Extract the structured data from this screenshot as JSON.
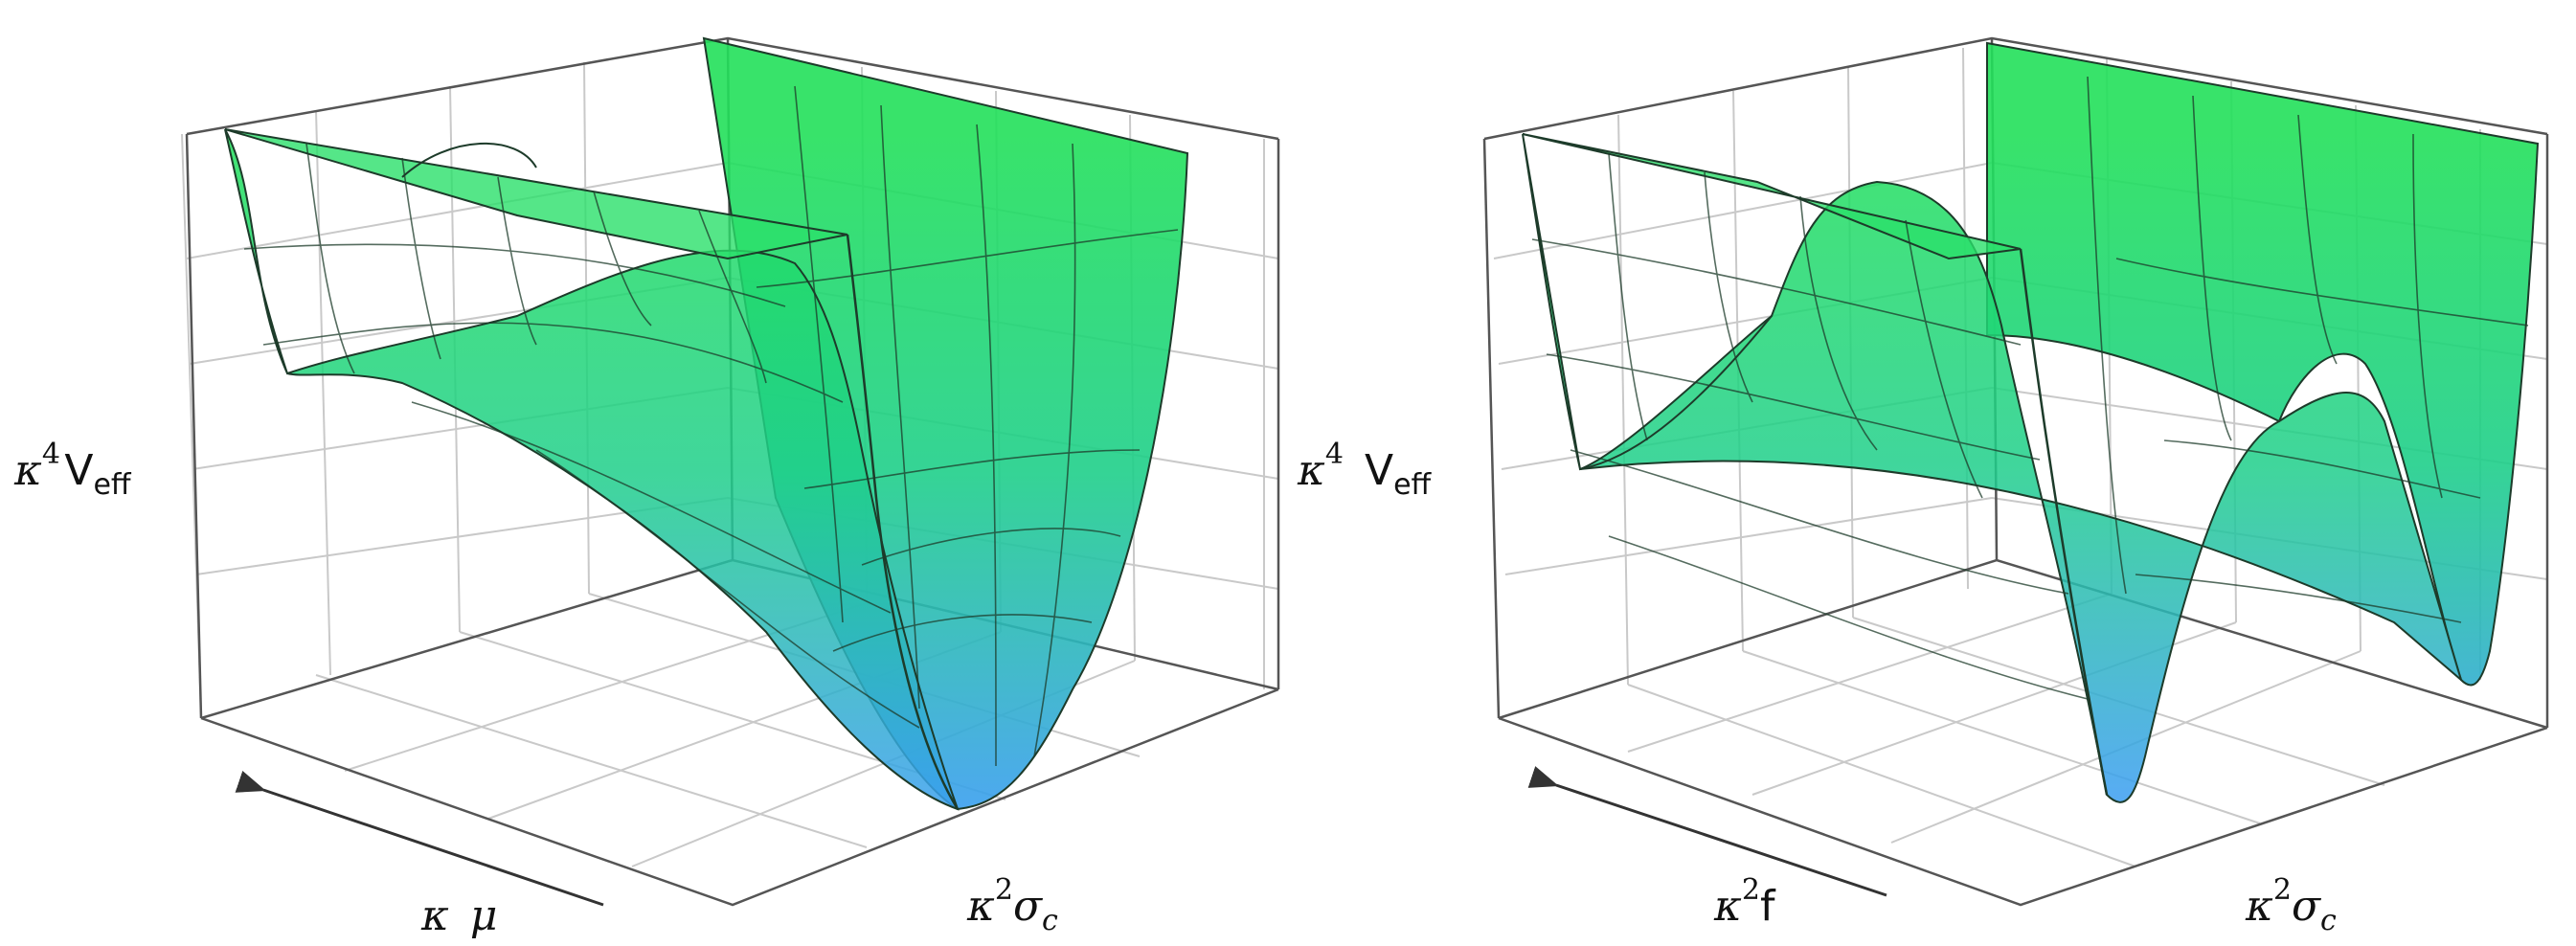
{
  "panels": [
    {
      "id": "left",
      "surface_shape": "double-well along kappa^2 sigma_c with deep minimum at large kappa mu",
      "axis_labels": {
        "z": {
          "base": "κ",
          "sup": "4",
          "var": "V",
          "sub": "eff"
        },
        "x": {
          "base": "κ",
          "sup": "",
          "var": "μ",
          "sub": ""
        },
        "y": {
          "base": "κ",
          "sup": "2",
          "var": "σ",
          "sub": "c"
        }
      }
    },
    {
      "id": "right",
      "surface_shape": "double-well along kappa^2 sigma_c, flat along kappa^2 f",
      "axis_labels": {
        "z": {
          "base": "κ",
          "sup": "4",
          "var": "V",
          "sub": "eff"
        },
        "x": {
          "base": "κ",
          "sup": "2",
          "var": "f",
          "sub": ""
        },
        "y": {
          "base": "κ",
          "sup": "2",
          "var": "σ",
          "sub": "c"
        }
      }
    }
  ],
  "colors": {
    "surface_top": "#22e05a",
    "surface_bottom": "#3aa0ea",
    "mesh": "#1b3a2a",
    "grid": "#c8c8c8",
    "box": "#555555",
    "arrow": "#333333"
  }
}
